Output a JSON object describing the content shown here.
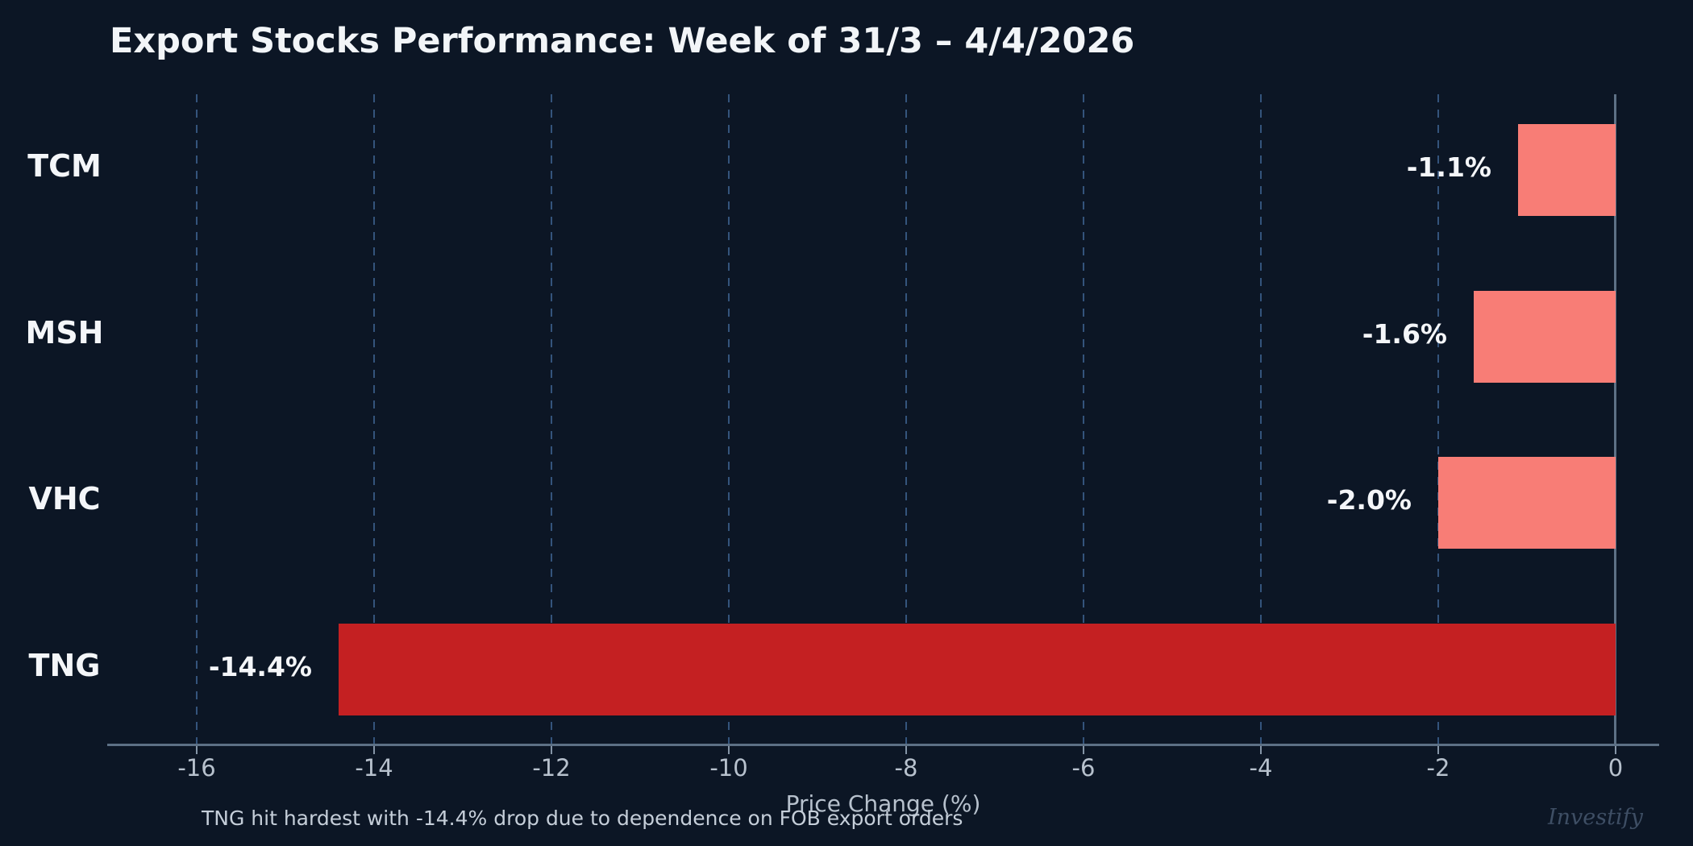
{
  "watermark": "Investify",
  "colors": {
    "background": "#0c1625",
    "bar_default": "#f87d76",
    "bar_highlight": "#c42022",
    "grid": "#34547c",
    "axis": "#5d7085",
    "tick_label": "#b7c1cd",
    "value_label": "#f4f6f9",
    "footnote_text": "#c5ced9",
    "watermark_text": "#3e4e64"
  },
  "chart_data": {
    "type": "bar",
    "orientation": "horizontal",
    "title": "Export Stocks Performance: Week of 31/3 – 4/4/2026",
    "categories": [
      "TCM",
      "MSH",
      "VHC",
      "TNG"
    ],
    "values": [
      -1.1,
      -1.6,
      -2.0,
      -14.4
    ],
    "value_labels": [
      "-1.1%",
      "-1.6%",
      "-2.0%",
      "-14.4%"
    ],
    "bar_colors": [
      "#f87d76",
      "#f87d76",
      "#f87d76",
      "#c42022"
    ],
    "xlabel": "Price Change (%)",
    "ylabel": "",
    "xticks": [
      -16,
      -14,
      -12,
      -10,
      -8,
      -6,
      -4,
      -2,
      0
    ],
    "xtick_labels": [
      "-16",
      "-14",
      "-12",
      "-10",
      "-8",
      "-6",
      "-4",
      "-2",
      "0"
    ],
    "xlim": [
      -17,
      0.9
    ],
    "grid": "vertical-dashed",
    "zero_line": true,
    "legend": "none",
    "annotation": "TNG hit hardest with -14.4% drop due to dependence on FOB export orders"
  }
}
